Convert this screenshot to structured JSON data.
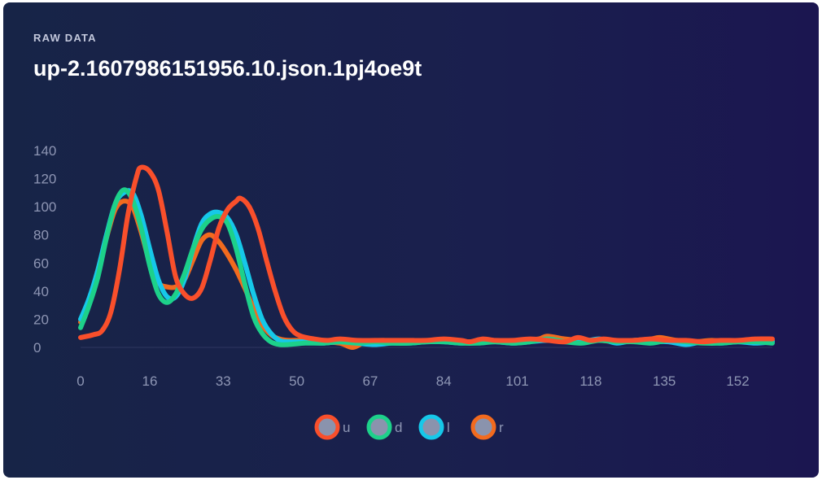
{
  "header": {
    "eyebrow": "RAW DATA",
    "title": "up-2.1607986151956.10.json.1pj4oe9t"
  },
  "chart_data": {
    "type": "line",
    "xlim": [
      0,
      160
    ],
    "ylim": [
      0,
      140
    ],
    "x_ticks": [
      "0",
      "16",
      "33",
      "50",
      "67",
      "84",
      "101",
      "118",
      "135",
      "152"
    ],
    "y_ticks": [
      "0",
      "20",
      "40",
      "60",
      "80",
      "100",
      "120",
      "140"
    ],
    "grid": false,
    "legend_position": "bottom-center",
    "series": [
      {
        "name": "u",
        "color": "#f94f2b",
        "points": [
          [
            0,
            7
          ],
          [
            3,
            9
          ],
          [
            5,
            12
          ],
          [
            7,
            25
          ],
          [
            9,
            55
          ],
          [
            11,
            95
          ],
          [
            13,
            122
          ],
          [
            14,
            128
          ],
          [
            16,
            125
          ],
          [
            18,
            112
          ],
          [
            20,
            82
          ],
          [
            22,
            50
          ],
          [
            24,
            38
          ],
          [
            26,
            35
          ],
          [
            28,
            42
          ],
          [
            30,
            62
          ],
          [
            32,
            85
          ],
          [
            34,
            98
          ],
          [
            36,
            104
          ],
          [
            37,
            106
          ],
          [
            39,
            100
          ],
          [
            41,
            85
          ],
          [
            43,
            62
          ],
          [
            45,
            40
          ],
          [
            47,
            22
          ],
          [
            49,
            12
          ],
          [
            51,
            8
          ],
          [
            54,
            6
          ],
          [
            57,
            5
          ],
          [
            60,
            6
          ],
          [
            64,
            5
          ],
          [
            68,
            5
          ],
          [
            72,
            5
          ],
          [
            76,
            5
          ],
          [
            80,
            5
          ],
          [
            84,
            6
          ],
          [
            88,
            5
          ],
          [
            90,
            4
          ],
          [
            93,
            6
          ],
          [
            96,
            5
          ],
          [
            100,
            5
          ],
          [
            104,
            6
          ],
          [
            108,
            5
          ],
          [
            112,
            4
          ],
          [
            115,
            7
          ],
          [
            118,
            5
          ],
          [
            121,
            6
          ],
          [
            124,
            5
          ],
          [
            128,
            5
          ],
          [
            132,
            6
          ],
          [
            136,
            5
          ],
          [
            140,
            5
          ],
          [
            144,
            4
          ],
          [
            148,
            5
          ],
          [
            152,
            5
          ],
          [
            156,
            6
          ],
          [
            160,
            6
          ]
        ]
      },
      {
        "name": "d",
        "color": "#1dd18a",
        "points": [
          [
            0,
            14
          ],
          [
            2,
            30
          ],
          [
            4,
            50
          ],
          [
            6,
            78
          ],
          [
            8,
            102
          ],
          [
            10,
            112
          ],
          [
            12,
            105
          ],
          [
            14,
            85
          ],
          [
            16,
            58
          ],
          [
            18,
            38
          ],
          [
            20,
            32
          ],
          [
            22,
            38
          ],
          [
            24,
            52
          ],
          [
            26,
            70
          ],
          [
            28,
            84
          ],
          [
            30,
            91
          ],
          [
            32,
            93
          ],
          [
            34,
            88
          ],
          [
            36,
            70
          ],
          [
            38,
            45
          ],
          [
            40,
            22
          ],
          [
            42,
            10
          ],
          [
            44,
            4
          ],
          [
            46,
            2
          ],
          [
            48,
            2
          ],
          [
            52,
            3
          ],
          [
            56,
            3
          ],
          [
            60,
            4
          ],
          [
            64,
            3
          ],
          [
            68,
            4
          ],
          [
            72,
            3
          ],
          [
            76,
            3
          ],
          [
            80,
            4
          ],
          [
            84,
            4
          ],
          [
            88,
            3
          ],
          [
            92,
            3
          ],
          [
            96,
            4
          ],
          [
            100,
            3
          ],
          [
            104,
            4
          ],
          [
            108,
            6
          ],
          [
            112,
            4
          ],
          [
            116,
            3
          ],
          [
            120,
            5
          ],
          [
            124,
            4
          ],
          [
            128,
            4
          ],
          [
            132,
            3
          ],
          [
            136,
            5
          ],
          [
            140,
            4
          ],
          [
            144,
            3
          ],
          [
            148,
            3
          ],
          [
            152,
            4
          ],
          [
            156,
            4
          ],
          [
            160,
            3
          ]
        ]
      },
      {
        "name": "l",
        "color": "#16c8e9",
        "points": [
          [
            0,
            20
          ],
          [
            2,
            35
          ],
          [
            4,
            55
          ],
          [
            6,
            80
          ],
          [
            8,
            102
          ],
          [
            10,
            110
          ],
          [
            12,
            110
          ],
          [
            14,
            94
          ],
          [
            16,
            70
          ],
          [
            18,
            48
          ],
          [
            20,
            36
          ],
          [
            22,
            36
          ],
          [
            24,
            48
          ],
          [
            26,
            70
          ],
          [
            28,
            88
          ],
          [
            30,
            95
          ],
          [
            32,
            96
          ],
          [
            34,
            92
          ],
          [
            36,
            80
          ],
          [
            38,
            60
          ],
          [
            40,
            38
          ],
          [
            42,
            20
          ],
          [
            44,
            10
          ],
          [
            46,
            5
          ],
          [
            48,
            4
          ],
          [
            52,
            4
          ],
          [
            56,
            3
          ],
          [
            60,
            4
          ],
          [
            64,
            3
          ],
          [
            68,
            2
          ],
          [
            72,
            3
          ],
          [
            76,
            3
          ],
          [
            80,
            4
          ],
          [
            84,
            4
          ],
          [
            88,
            3
          ],
          [
            92,
            4
          ],
          [
            96,
            4
          ],
          [
            100,
            3
          ],
          [
            104,
            4
          ],
          [
            108,
            5
          ],
          [
            112,
            4
          ],
          [
            116,
            4
          ],
          [
            120,
            6
          ],
          [
            124,
            3
          ],
          [
            128,
            5
          ],
          [
            132,
            4
          ],
          [
            136,
            4
          ],
          [
            140,
            2
          ],
          [
            144,
            4
          ],
          [
            148,
            3
          ],
          [
            152,
            4
          ],
          [
            156,
            3
          ],
          [
            160,
            4
          ]
        ]
      },
      {
        "name": "r",
        "color": "#f26a1e",
        "points": [
          [
            0,
            18
          ],
          [
            2,
            33
          ],
          [
            4,
            55
          ],
          [
            6,
            78
          ],
          [
            8,
            98
          ],
          [
            10,
            104
          ],
          [
            12,
            100
          ],
          [
            14,
            82
          ],
          [
            16,
            60
          ],
          [
            18,
            46
          ],
          [
            20,
            43
          ],
          [
            22,
            43
          ],
          [
            24,
            48
          ],
          [
            26,
            62
          ],
          [
            28,
            76
          ],
          [
            30,
            80
          ],
          [
            32,
            75
          ],
          [
            34,
            66
          ],
          [
            36,
            55
          ],
          [
            38,
            42
          ],
          [
            40,
            28
          ],
          [
            42,
            16
          ],
          [
            44,
            9
          ],
          [
            46,
            6
          ],
          [
            48,
            5
          ],
          [
            52,
            5
          ],
          [
            56,
            4
          ],
          [
            60,
            3
          ],
          [
            63,
            0
          ],
          [
            66,
            4
          ],
          [
            70,
            5
          ],
          [
            74,
            4
          ],
          [
            78,
            4
          ],
          [
            82,
            5
          ],
          [
            86,
            4
          ],
          [
            90,
            4
          ],
          [
            94,
            5
          ],
          [
            98,
            4
          ],
          [
            102,
            5
          ],
          [
            106,
            6
          ],
          [
            108,
            8
          ],
          [
            112,
            6
          ],
          [
            116,
            5
          ],
          [
            120,
            5
          ],
          [
            124,
            4
          ],
          [
            128,
            5
          ],
          [
            132,
            6
          ],
          [
            134,
            7
          ],
          [
            138,
            5
          ],
          [
            142,
            4
          ],
          [
            146,
            5
          ],
          [
            150,
            4
          ],
          [
            154,
            5
          ],
          [
            158,
            5
          ],
          [
            160,
            5
          ]
        ]
      }
    ]
  }
}
